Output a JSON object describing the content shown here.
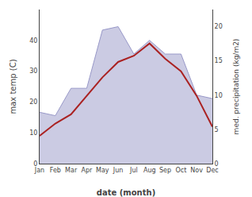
{
  "chart_data": {
    "type": "line",
    "xlabel": "date (month)",
    "ylabel": "max temp (C)",
    "y2label": "med. precipitation (kg/m2)",
    "categories": [
      "Jan",
      "Feb",
      "Mar",
      "Apr",
      "May",
      "Jun",
      "Jul",
      "Aug",
      "Sep",
      "Oct",
      "Nov",
      "Dec"
    ],
    "series": [
      {
        "type": "area",
        "axis": "y2",
        "color": "#9898c8",
        "values": [
          7.5,
          7,
          11,
          11,
          19.5,
          20,
          16,
          18,
          16,
          16,
          10,
          9.5
        ]
      },
      {
        "type": "line",
        "color": "#aa2222",
        "values": [
          9,
          13,
          16,
          22,
          28,
          33,
          35,
          39,
          34,
          30,
          22,
          12
        ]
      }
    ],
    "ylim": [
      0,
      50
    ],
    "yticks": [
      0,
      10,
      20,
      30,
      40
    ],
    "y2lim": [
      0,
      22.5
    ],
    "y2ticks": [
      0,
      5,
      10,
      15,
      20
    ],
    "grid": false
  }
}
